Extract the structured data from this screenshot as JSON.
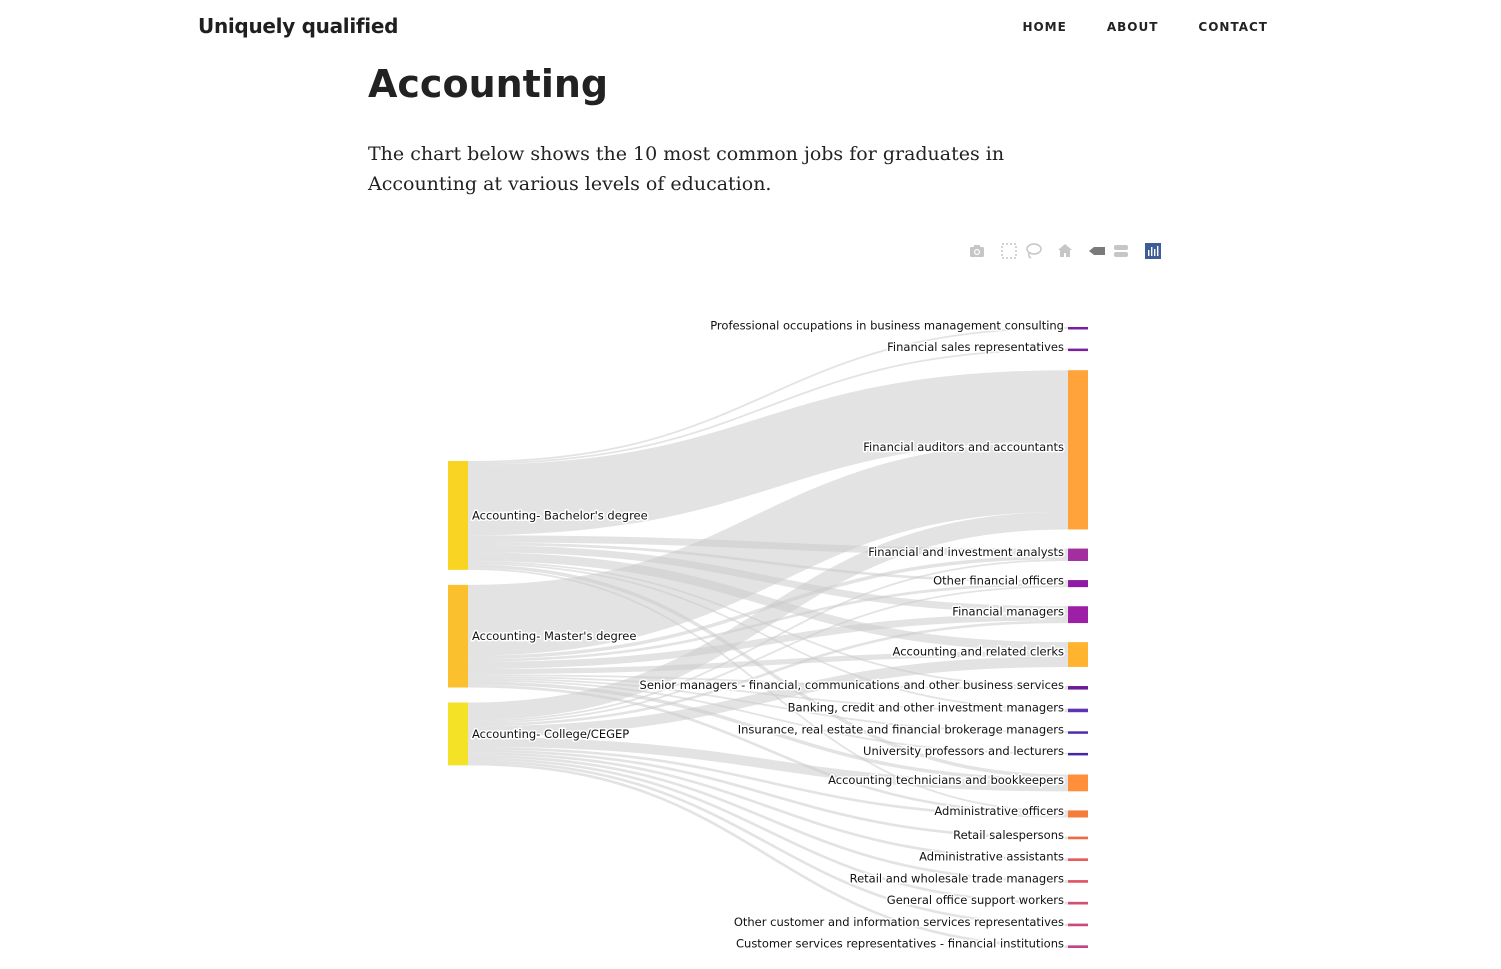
{
  "site": {
    "brand": "Uniquely qualified"
  },
  "nav": {
    "home": "HOME",
    "about": "ABOUT",
    "contact": "CONTACT"
  },
  "page": {
    "title": "Accounting",
    "intro": "The chart below shows the 10 most common jobs for graduates in Accounting at various levels of education."
  },
  "modebar": [
    "camera-icon",
    "box-select-icon",
    "lasso-select-icon",
    "reset-axes-icon",
    "hover-closest-icon",
    "hover-compare-icon",
    "plotly-logo-icon"
  ],
  "chart_data": {
    "type": "sankey",
    "link_color": "#cccccc",
    "sources": [
      {
        "name": "Accounting- Bachelor's degree",
        "color": "#f9d423"
      },
      {
        "name": "Accounting- Master's degree",
        "color": "#fbc02d"
      },
      {
        "name": "Accounting- College/CEGEP",
        "color": "#f4e226"
      }
    ],
    "targets": [
      {
        "name": "Professional occupations in business management consulting",
        "color": "#7b1fa2"
      },
      {
        "name": "Financial sales representatives",
        "color": "#7b1fa2"
      },
      {
        "name": "Financial auditors and accountants",
        "color": "#ffa33a"
      },
      {
        "name": "Financial and investment analysts",
        "color": "#a32ea0"
      },
      {
        "name": "Other financial officers",
        "color": "#8e1aa6"
      },
      {
        "name": "Financial managers",
        "color": "#9c1fa6"
      },
      {
        "name": "Accounting and related clerks",
        "color": "#ffb32e"
      },
      {
        "name": "Senior managers - financial, communications and other business services",
        "color": "#6a1b9a"
      },
      {
        "name": "Banking, credit and other investment managers",
        "color": "#5e35b1"
      },
      {
        "name": "Insurance, real estate and financial brokerage managers",
        "color": "#512da8"
      },
      {
        "name": "University professors and lecturers",
        "color": "#4527a0"
      },
      {
        "name": "Accounting technicians and bookkeepers",
        "color": "#ff8f3a"
      },
      {
        "name": "Administrative officers",
        "color": "#f57c3a"
      },
      {
        "name": "Retail salespersons",
        "color": "#ee6a45"
      },
      {
        "name": "Administrative assistants",
        "color": "#e35d5d"
      },
      {
        "name": "Retail and wholesale trade managers",
        "color": "#db5566"
      },
      {
        "name": "General office support workers",
        "color": "#d24f74"
      },
      {
        "name": "Other customer and information services representatives",
        "color": "#c94a80"
      },
      {
        "name": "Customer services representatives - financial institutions",
        "color": "#c0448a"
      }
    ],
    "links": [
      {
        "source": 0,
        "target": 0,
        "value": 2
      },
      {
        "source": 0,
        "target": 1,
        "value": 2
      },
      {
        "source": 0,
        "target": 2,
        "value": 80
      },
      {
        "source": 0,
        "target": 3,
        "value": 8
      },
      {
        "source": 0,
        "target": 4,
        "value": 3
      },
      {
        "source": 0,
        "target": 5,
        "value": 8
      },
      {
        "source": 0,
        "target": 6,
        "value": 10
      },
      {
        "source": 0,
        "target": 7,
        "value": 2
      },
      {
        "source": 0,
        "target": 8,
        "value": 2
      },
      {
        "source": 0,
        "target": 11,
        "value": 4
      },
      {
        "source": 0,
        "target": 12,
        "value": 2
      },
      {
        "source": 1,
        "target": 2,
        "value": 80
      },
      {
        "source": 1,
        "target": 3,
        "value": 4
      },
      {
        "source": 1,
        "target": 4,
        "value": 3
      },
      {
        "source": 1,
        "target": 5,
        "value": 8
      },
      {
        "source": 1,
        "target": 6,
        "value": 6
      },
      {
        "source": 1,
        "target": 7,
        "value": 2
      },
      {
        "source": 1,
        "target": 8,
        "value": 2
      },
      {
        "source": 1,
        "target": 9,
        "value": 2
      },
      {
        "source": 1,
        "target": 10,
        "value": 2
      },
      {
        "source": 1,
        "target": 11,
        "value": 4
      },
      {
        "source": 1,
        "target": 12,
        "value": 3
      },
      {
        "source": 2,
        "target": 2,
        "value": 20
      },
      {
        "source": 2,
        "target": 3,
        "value": 2
      },
      {
        "source": 2,
        "target": 4,
        "value": 2
      },
      {
        "source": 2,
        "target": 5,
        "value": 3
      },
      {
        "source": 2,
        "target": 6,
        "value": 12
      },
      {
        "source": 2,
        "target": 11,
        "value": 11
      },
      {
        "source": 2,
        "target": 12,
        "value": 3
      },
      {
        "source": 2,
        "target": 13,
        "value": 3
      },
      {
        "source": 2,
        "target": 14,
        "value": 3
      },
      {
        "source": 2,
        "target": 15,
        "value": 3
      },
      {
        "source": 2,
        "target": 16,
        "value": 3
      },
      {
        "source": 2,
        "target": 17,
        "value": 3
      },
      {
        "source": 2,
        "target": 18,
        "value": 3
      }
    ]
  }
}
